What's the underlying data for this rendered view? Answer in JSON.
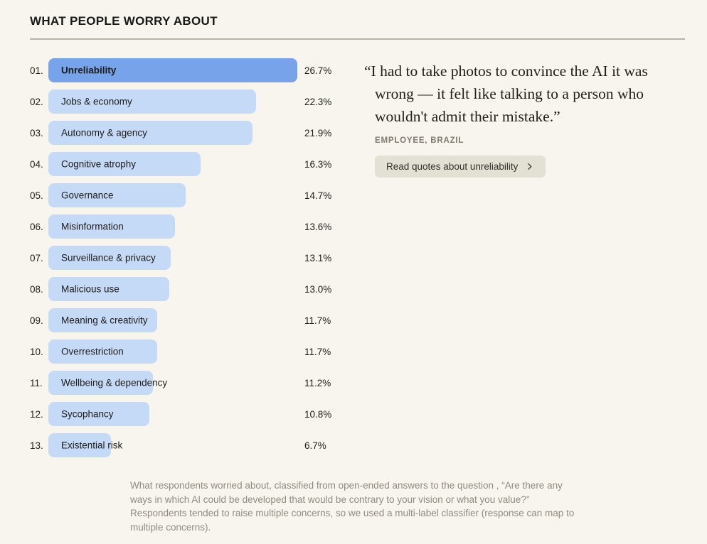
{
  "page": {
    "background": "#F7F5EE"
  },
  "header": {
    "title": "WHAT PEOPLE WORRY ABOUT"
  },
  "chart_data": {
    "type": "bar",
    "orientation": "horizontal",
    "title": "WHAT PEOPLE WORRY ABOUT",
    "xlim": [
      0,
      26.7
    ],
    "grid": false,
    "legend": false,
    "highlight_index": 0,
    "categories": [
      "Unreliability",
      "Jobs & economy",
      "Autonomy & agency",
      "Cognitive atrophy",
      "Governance",
      "Misinformation",
      "Surveillance & privacy",
      "Malicious use",
      "Meaning & creativity",
      "Overrestriction",
      "Wellbeing & dependency",
      "Sycophancy",
      "Existential risk"
    ],
    "values": [
      26.7,
      22.3,
      21.9,
      16.3,
      14.7,
      13.6,
      13.1,
      13.0,
      11.7,
      11.7,
      11.2,
      10.8,
      6.7
    ],
    "ranks": [
      "01.",
      "02.",
      "03.",
      "04.",
      "05.",
      "06.",
      "07.",
      "08.",
      "09.",
      "10.",
      "11.",
      "12.",
      "13."
    ],
    "value_labels": [
      "26.7%",
      "22.3%",
      "21.9%",
      "16.3%",
      "14.7%",
      "13.6%",
      "13.1%",
      "13.0%",
      "11.7%",
      "11.7%",
      "11.2%",
      "10.8%",
      "6.7%"
    ],
    "colors": {
      "bar_highlight": "#76A3E9",
      "bar_default": "#C5DAF6"
    }
  },
  "quote": {
    "text": "“I had to take photos to convince the AI it was wrong — it felt like talking to a person who wouldn't admit their mistake.”",
    "attribution": "EMPLOYEE, BRAZIL",
    "button_label": "Read quotes about unreliability",
    "button_icon": "chevron-right-icon"
  },
  "footnote": "What respondents worried about, classified from open-ended answers to the question , “Are there any ways in which AI could be developed that would be contrary to your vision or what you value?” Respondents tended to raise multiple concerns, so we used a multi-label classifier (response can map to multiple concerns)."
}
